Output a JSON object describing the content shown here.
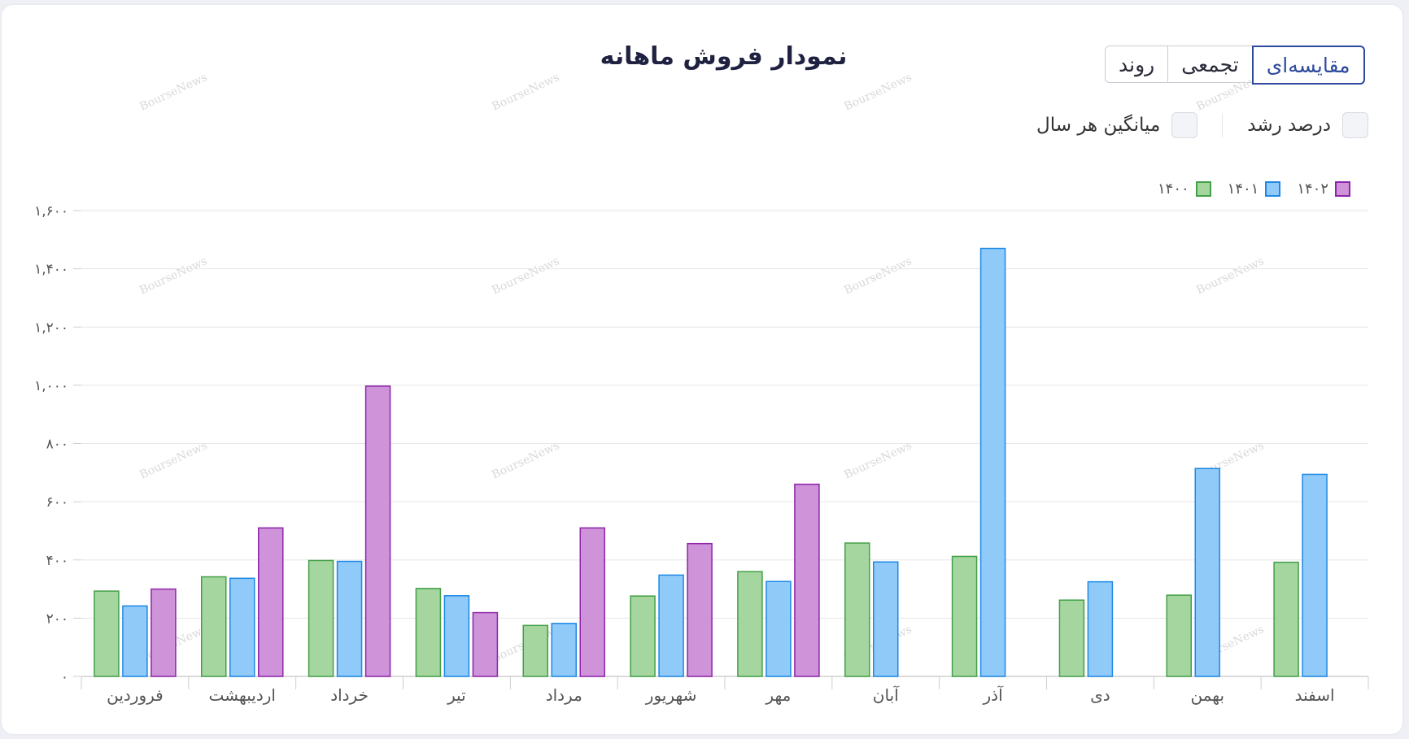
{
  "header": {
    "title": "نمودار فروش ماهانه"
  },
  "tabs": [
    {
      "label": "مقایسه‌ای",
      "active": true
    },
    {
      "label": "تجمعی",
      "active": false
    },
    {
      "label": "روند",
      "active": false
    }
  ],
  "options": [
    {
      "label": "درصد رشد",
      "checked": false
    },
    {
      "label": "میانگین هر سال",
      "checked": false
    }
  ],
  "watermark": "BourseNews",
  "colors": {
    "s1400_fill": "#a5d6a0",
    "s1400_stroke": "#43a047",
    "s1401_fill": "#90caf9",
    "s1401_stroke": "#1e88e5",
    "s1402_fill": "#ce93d8",
    "s1402_stroke": "#8e24aa"
  },
  "chart_data": {
    "type": "bar",
    "categories": [
      "فروردین",
      "اردیبهشت",
      "خرداد",
      "تیر",
      "مرداد",
      "شهریور",
      "مهر",
      "آبان",
      "آذر",
      "دی",
      "بهمن",
      "اسفند"
    ],
    "series": [
      {
        "name": "۱۴۰۰",
        "values": [
          293,
          342,
          398,
          302,
          175,
          276,
          360,
          458,
          412,
          262,
          279,
          392
        ]
      },
      {
        "name": "۱۴۰۱",
        "values": [
          242,
          337,
          395,
          277,
          182,
          348,
          326,
          393,
          1470,
          325,
          714,
          694
        ]
      },
      {
        "name": "۱۴۰۲",
        "values": [
          300,
          510,
          997,
          219,
          510,
          456,
          660,
          null,
          null,
          null,
          null,
          null
        ]
      }
    ],
    "yticks": [
      "۰",
      "۲۰۰",
      "۴۰۰",
      "۶۰۰",
      "۸۰۰",
      "۱,۰۰۰",
      "۱,۲۰۰",
      "۱,۴۰۰",
      "۱,۶۰۰"
    ],
    "ylim": [
      0,
      1600
    ],
    "grid": true,
    "legend": "top-right"
  }
}
